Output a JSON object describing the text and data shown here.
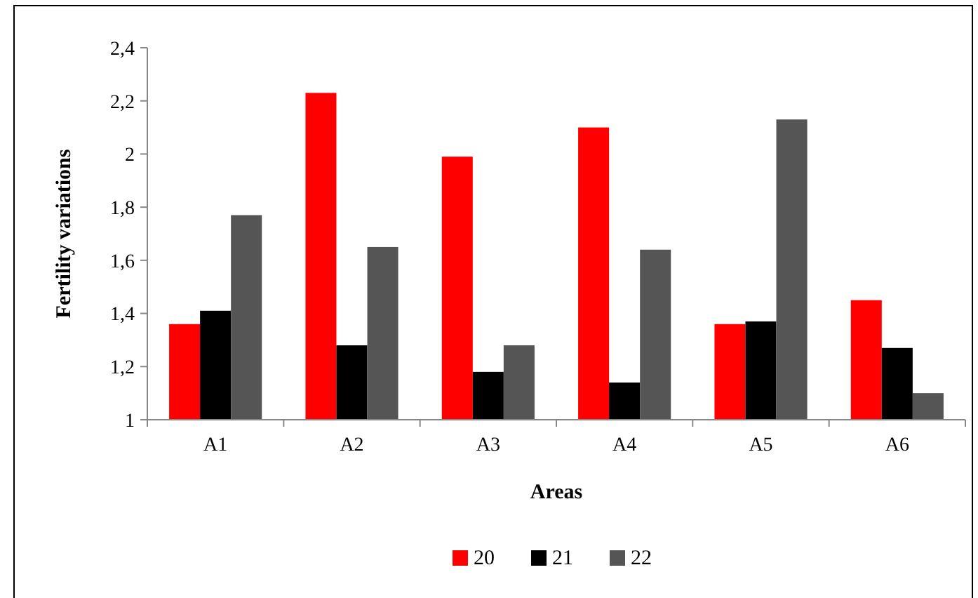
{
  "chart_data": {
    "type": "bar",
    "xlabel": "Areas",
    "ylabel": "Fertility variations",
    "categories": [
      "A1",
      "A2",
      "A3",
      "A4",
      "A5",
      "A6"
    ],
    "series": [
      {
        "name": "20",
        "color": "#ff0000",
        "values": [
          1.36,
          2.23,
          1.99,
          2.1,
          1.36,
          1.45
        ]
      },
      {
        "name": "21",
        "color": "#000000",
        "values": [
          1.41,
          1.28,
          1.18,
          1.14,
          1.37,
          1.27
        ]
      },
      {
        "name": "22",
        "color": "#555555",
        "values": [
          1.77,
          1.65,
          1.28,
          1.64,
          2.13,
          1.1
        ]
      }
    ],
    "ylim": [
      1,
      2.4
    ],
    "yticks": [
      {
        "value": 1,
        "label": "1"
      },
      {
        "value": 1.2,
        "label": "1,2"
      },
      {
        "value": 1.4,
        "label": "1,4"
      },
      {
        "value": 1.6,
        "label": "1,6"
      },
      {
        "value": 1.8,
        "label": "1,8"
      },
      {
        "value": 2,
        "label": "2"
      },
      {
        "value": 2.2,
        "label": "2,2"
      },
      {
        "value": 2.4,
        "label": "2,4"
      }
    ],
    "grid": false,
    "legend": "bottom"
  }
}
